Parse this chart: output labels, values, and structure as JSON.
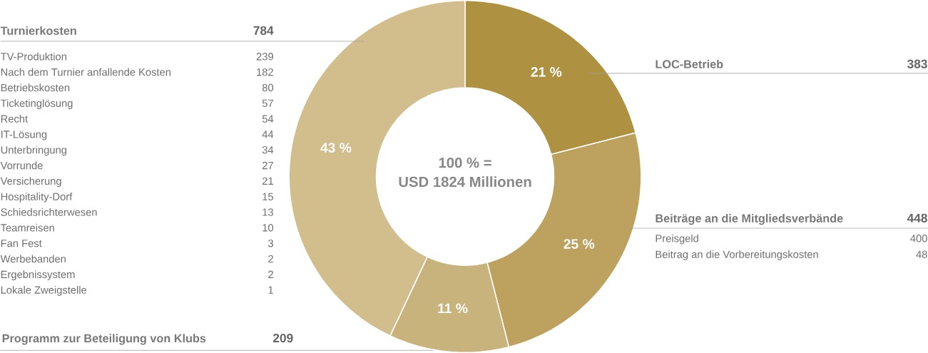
{
  "chart_data": {
    "type": "donut",
    "categories": [
      "LOC-Betrieb",
      "Beiträge an die Mitgliedsverbände",
      "Programm zur Beteiligung von Klubs",
      "Turnierkosten"
    ],
    "values": [
      21,
      25,
      11,
      43
    ],
    "colors": [
      "#ae9242",
      "#bda25f",
      "#c8b37c",
      "#d2bd8c"
    ],
    "value_labels": [
      "21 %",
      "25 %",
      "11 %",
      "43 %"
    ],
    "annotations": [
      "100 % =",
      "USD 1824 Millionen",
      "383",
      "448",
      "209",
      "784",
      "TV-Produktion",
      "239",
      "Nach dem Turnier anfallende Kosten",
      "182",
      "Betriebskosten",
      "80",
      "Ticketinglösung",
      "57",
      "Recht",
      "54",
      "IT-Lösung",
      "44",
      "Unterbringung",
      "34",
      "Vorrunde",
      "27",
      "Versicherung",
      "21",
      "Hospitality-Dorf",
      "15",
      "Schiedsrichterwesen",
      "13",
      "Teamreisen",
      "10",
      "Fan Fest",
      "3",
      "Werbebanden",
      "2",
      "Ergebnissystem",
      "2",
      "Lokale Zweigstelle",
      "1",
      "Preisgeld",
      "400",
      "Beitrag an die Vorbereitungskosten",
      "48"
    ]
  }
}
